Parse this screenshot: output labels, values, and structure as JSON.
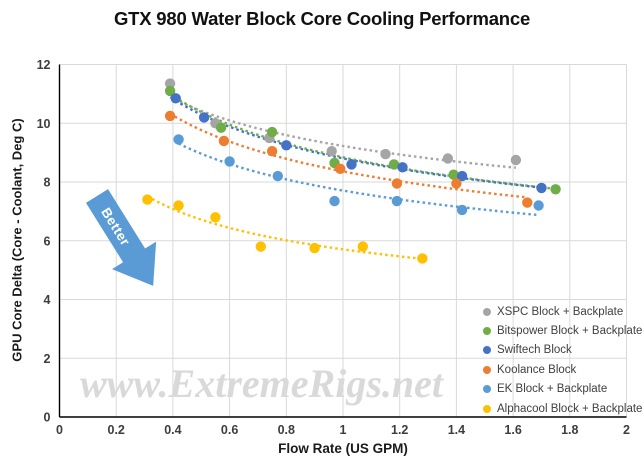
{
  "chart_data": {
    "type": "scatter",
    "title": "GTX 980 Water Block Core Cooling Performance",
    "xlabel": "Flow Rate (US GPM)",
    "ylabel": "GPU Core Delta (Core - Coolant, Deg C)",
    "xlim": [
      0,
      2
    ],
    "ylim": [
      0,
      12
    ],
    "xticks": [
      0,
      0.2,
      0.4,
      0.6,
      0.8,
      1,
      1.2,
      1.4,
      1.6,
      1.8,
      2
    ],
    "yticks": [
      0,
      2,
      4,
      6,
      8,
      10,
      12
    ],
    "grid": true,
    "gridline_color": "#d9d9d9",
    "axis_line_color": "#000000",
    "legend_position": "inside-bottom-right",
    "trendline_type": "power",
    "trendline_style": "dotted",
    "series": [
      {
        "name": "XSPC Block + Backplate",
        "color": "#A5A5A5",
        "points": [
          [
            0.39,
            11.35
          ],
          [
            0.55,
            10.0
          ],
          [
            0.74,
            9.5
          ],
          [
            0.96,
            9.05
          ],
          [
            1.15,
            8.95
          ],
          [
            1.37,
            8.8
          ],
          [
            1.61,
            8.75
          ]
        ]
      },
      {
        "name": "Bitspower Block + Backplate",
        "color": "#70AD47",
        "points": [
          [
            0.39,
            11.1
          ],
          [
            0.57,
            9.85
          ],
          [
            0.75,
            9.7
          ],
          [
            0.97,
            8.65
          ],
          [
            1.18,
            8.6
          ],
          [
            1.39,
            8.25
          ],
          [
            1.75,
            7.75
          ]
        ]
      },
      {
        "name": "Swiftech Block",
        "color": "#4472C4",
        "points": [
          [
            0.41,
            10.85
          ],
          [
            0.51,
            10.2
          ],
          [
            0.8,
            9.25
          ],
          [
            1.03,
            8.6
          ],
          [
            1.21,
            8.5
          ],
          [
            1.42,
            8.2
          ],
          [
            1.7,
            7.8
          ]
        ]
      },
      {
        "name": "Koolance Block",
        "color": "#ED7D31",
        "points": [
          [
            0.39,
            10.25
          ],
          [
            0.58,
            9.4
          ],
          [
            0.75,
            9.05
          ],
          [
            0.99,
            8.45
          ],
          [
            1.19,
            7.95
          ],
          [
            1.4,
            7.95
          ],
          [
            1.65,
            7.3
          ]
        ]
      },
      {
        "name": "EK Block + Backplate",
        "color": "#5B9BD5",
        "points": [
          [
            0.42,
            9.45
          ],
          [
            0.6,
            8.7
          ],
          [
            0.77,
            8.2
          ],
          [
            0.97,
            7.35
          ],
          [
            1.19,
            7.35
          ],
          [
            1.42,
            7.05
          ],
          [
            1.69,
            7.2
          ]
        ]
      },
      {
        "name": "Alphacool Block + Backplate",
        "color": "#FFC000",
        "points": [
          [
            0.31,
            7.4
          ],
          [
            0.42,
            7.2
          ],
          [
            0.55,
            6.8
          ],
          [
            0.71,
            5.8
          ],
          [
            0.9,
            5.75
          ],
          [
            1.07,
            5.8
          ],
          [
            1.28,
            5.4
          ]
        ]
      }
    ],
    "annotation": {
      "label": "Better",
      "arrow_color": "#5B9BD5",
      "direction": "down-left-diagonal"
    }
  },
  "watermark": {
    "text": "www.ExtremeRigs.net"
  }
}
